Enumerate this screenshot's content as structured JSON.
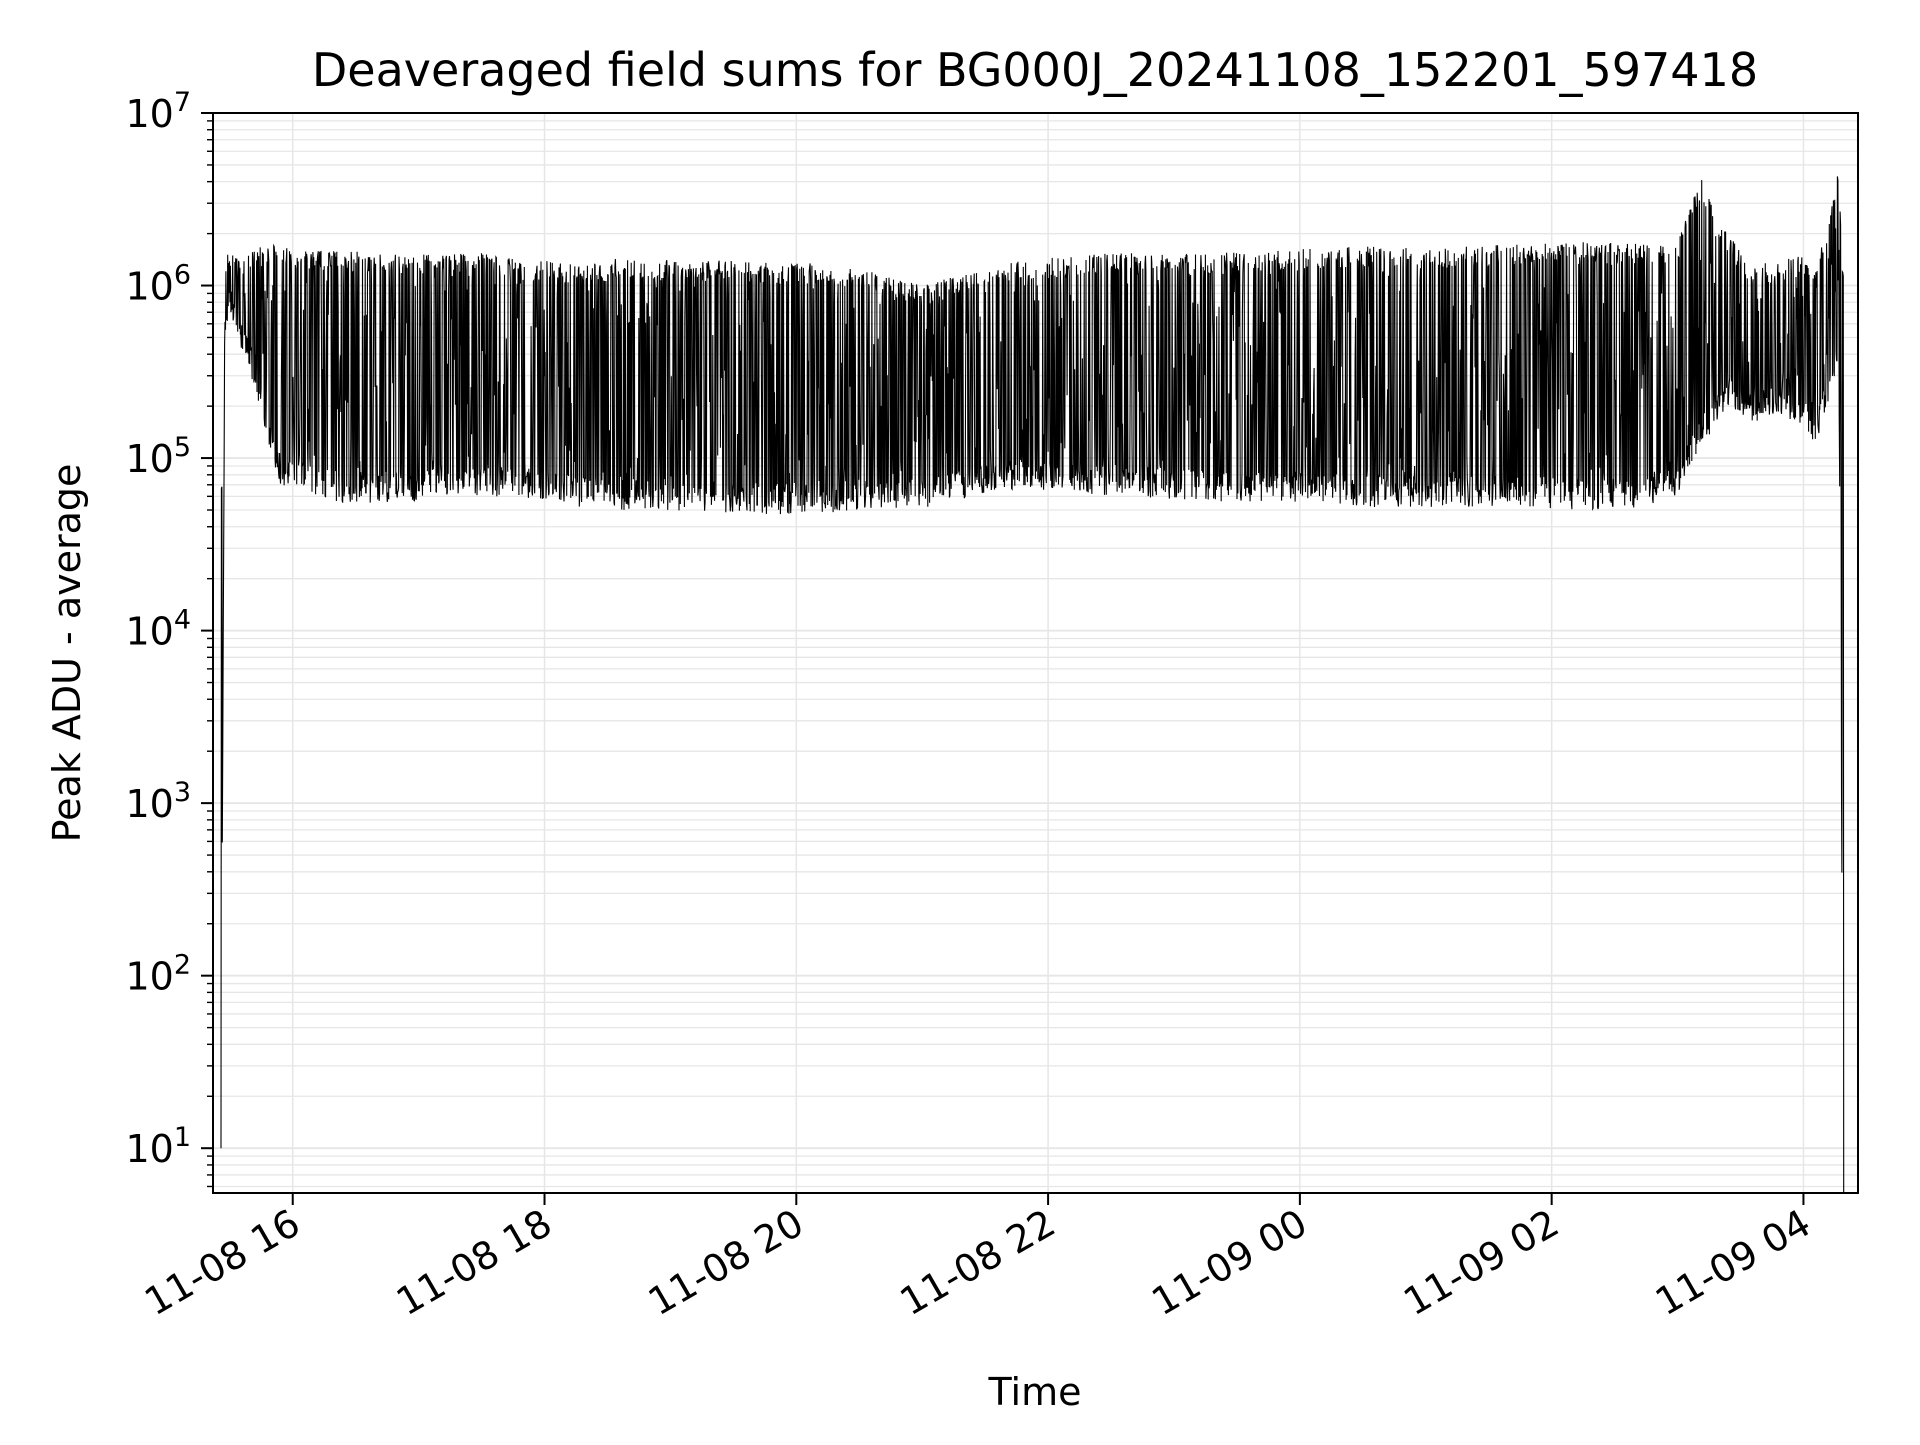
{
  "chart_data": {
    "type": "line",
    "title": "Deaveraged field sums for BG000J_20241108_152201_597418",
    "xlabel": "Time",
    "ylabel": "Peak ADU - average",
    "yscale": "log",
    "ylim": [
      5.5,
      10000000
    ],
    "xlim": [
      "11-08 15:22",
      "11-09 04:26"
    ],
    "grid": true,
    "line_color": "#000000",
    "grid_color": "#e6e6e6",
    "x_ticks": [
      {
        "label": "11-08 16",
        "hours": 16
      },
      {
        "label": "11-08 18",
        "hours": 18
      },
      {
        "label": "11-08 20",
        "hours": 20
      },
      {
        "label": "11-08 22",
        "hours": 22
      },
      {
        "label": "11-09 00",
        "hours": 24
      },
      {
        "label": "11-09 02",
        "hours": 26
      },
      {
        "label": "11-09 04",
        "hours": 28
      }
    ],
    "y_ticks": [
      {
        "base": "10",
        "exp": "1",
        "value": 10
      },
      {
        "base": "10",
        "exp": "2",
        "value": 100
      },
      {
        "base": "10",
        "exp": "3",
        "value": 1000
      },
      {
        "base": "10",
        "exp": "4",
        "value": 10000
      },
      {
        "base": "10",
        "exp": "5",
        "value": 100000
      },
      {
        "base": "10",
        "exp": "6",
        "value": 1000000
      },
      {
        "base": "10",
        "exp": "7",
        "value": 10000000
      }
    ],
    "series": [
      {
        "envelope_hours": [
          15.43,
          15.46,
          15.5,
          15.6,
          15.7,
          15.8,
          15.9,
          16.0,
          16.2,
          16.4,
          16.6,
          16.8,
          17.0,
          17.2,
          17.4,
          17.6,
          17.8,
          18.0,
          18.3,
          18.6,
          19.0,
          19.4,
          19.8,
          20.2,
          20.6,
          21.0,
          21.4,
          21.8,
          22.2,
          22.6,
          23.0,
          23.4,
          23.8,
          24.2,
          24.6,
          25.0,
          25.4,
          25.8,
          26.2,
          26.6,
          27.0,
          27.1,
          27.2,
          27.3,
          27.4,
          27.6,
          27.8,
          28.0,
          28.1,
          28.2,
          28.28,
          28.32
        ],
        "envelope_low": [
          10,
          500000,
          700000,
          400000,
          250000,
          120000,
          70000,
          65000,
          60000,
          55000,
          55000,
          55000,
          55000,
          60000,
          60000,
          60000,
          60000,
          55000,
          52000,
          50000,
          50000,
          48000,
          47000,
          48000,
          50000,
          50000,
          60000,
          65000,
          62000,
          60000,
          58000,
          56000,
          55000,
          55000,
          52000,
          52000,
          52000,
          52000,
          50000,
          50000,
          60000,
          90000,
          120000,
          150000,
          200000,
          160000,
          180000,
          150000,
          120000,
          200000,
          400000,
          5.5
        ],
        "envelope_high": [
          50000,
          1400000,
          1600000,
          1600000,
          1700000,
          1700000,
          1700000,
          1600000,
          1600000,
          1600000,
          1550000,
          1550000,
          1550000,
          1550000,
          1600000,
          1500000,
          1400000,
          1400000,
          1300000,
          1450000,
          1400000,
          1400000,
          1350000,
          1350000,
          1200000,
          1000000,
          1200000,
          1400000,
          1500000,
          1550000,
          1500000,
          1550000,
          1600000,
          1650000,
          1700000,
          1650000,
          1700000,
          1750000,
          1800000,
          1750000,
          1800000,
          3000000,
          4200000,
          2500000,
          2000000,
          1300000,
          1400000,
          1500000,
          1200000,
          2500000,
          5000000,
          1000000
        ]
      }
    ]
  }
}
